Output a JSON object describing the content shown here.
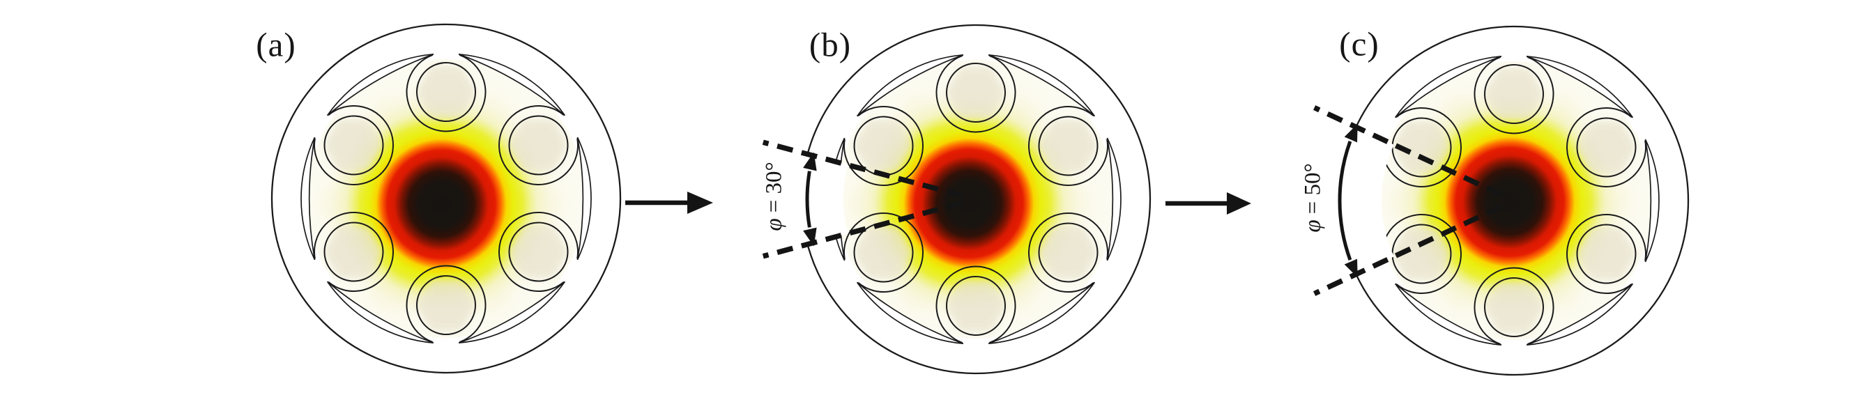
{
  "figure": {
    "panels": [
      {
        "id": "a",
        "label": "(a)"
      },
      {
        "id": "b",
        "label": "(b)",
        "wedge_angle_deg": 30,
        "angle_label": {
          "symbol": "φ",
          "rest": "= 30°"
        }
      },
      {
        "id": "c",
        "label": "(c)",
        "wedge_angle_deg": 50,
        "angle_label": {
          "symbol": "φ",
          "rest": "= 50°"
        }
      }
    ],
    "arrows": [
      {
        "name": "arrow-a-to-b",
        "direction": "right"
      },
      {
        "name": "arrow-b-to-c",
        "direction": "right"
      }
    ],
    "colors": {
      "line": "#1b1b1b",
      "arrow": "#141414",
      "dashed_line": "#141414",
      "mode_core_black": "#161311",
      "mode_dark_red": "#7e1403",
      "mode_red": "#e51c02",
      "mode_orange": "#fd6a00",
      "mode_yellow_green": "#eaef10",
      "halo_yellow": "#e7ef14",
      "halo_cream": "#f5f2c8",
      "capillary_tint": "#e9e4cf",
      "inner_tint": "#fcfbf1",
      "background": "#ffffff"
    }
  }
}
